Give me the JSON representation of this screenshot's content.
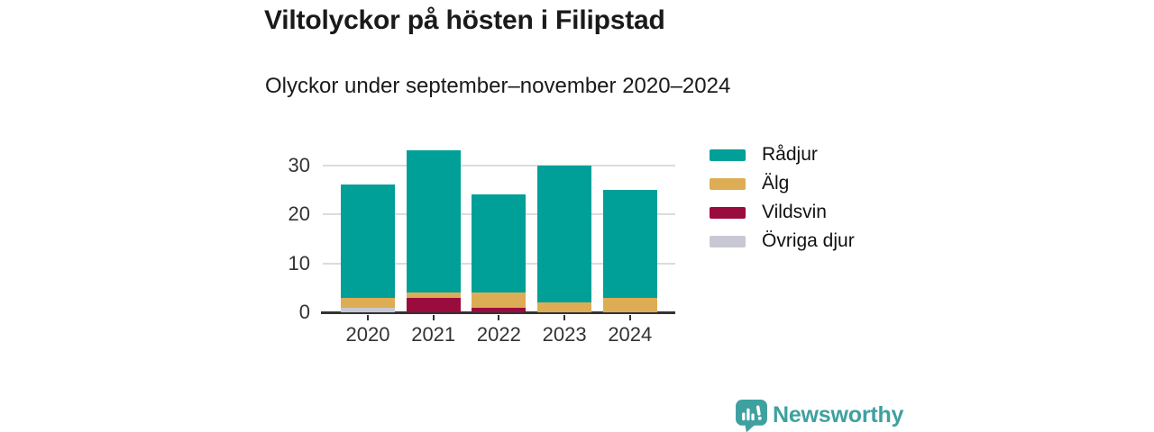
{
  "header": {
    "title": "Viltolyckor på hösten i Filipstad",
    "subtitle": "Olyckor under september–november 2020–2024"
  },
  "chart_data": {
    "type": "bar",
    "stacked": true,
    "title": "Viltolyckor på hösten i Filipstad",
    "subtitle": "Olyckor under september–november 2020–2024",
    "categories": [
      "2020",
      "2021",
      "2022",
      "2023",
      "2024"
    ],
    "series": [
      {
        "name": "Rådjur",
        "color": "#00a098",
        "values": [
          23,
          29,
          20,
          28,
          22
        ]
      },
      {
        "name": "Älg",
        "color": "#ddad55",
        "values": [
          2,
          1,
          3,
          2,
          3
        ]
      },
      {
        "name": "Vildsvin",
        "color": "#9b0c3e",
        "values": [
          0,
          3,
          1,
          0,
          0
        ]
      },
      {
        "name": "Övriga djur",
        "color": "#c8c8d4",
        "values": [
          1,
          0,
          0,
          0,
          0
        ]
      }
    ],
    "totals": [
      26,
      33,
      24,
      30,
      25
    ],
    "xlabel": "",
    "ylabel": "",
    "yticks": [
      0,
      10,
      20,
      30
    ],
    "ylim": [
      0,
      36
    ],
    "grid": "horizontal",
    "legend_position": "right",
    "stack_order_bottom_to_top": [
      "Övriga djur",
      "Vildsvin",
      "Älg",
      "Rådjur"
    ]
  },
  "footer": {
    "brand": "Newsworthy"
  },
  "colors": {
    "axis": "#333333",
    "grid": "#dcdcdc",
    "text": "#1a1a1a",
    "brand_teal": "#3fa0a0"
  }
}
